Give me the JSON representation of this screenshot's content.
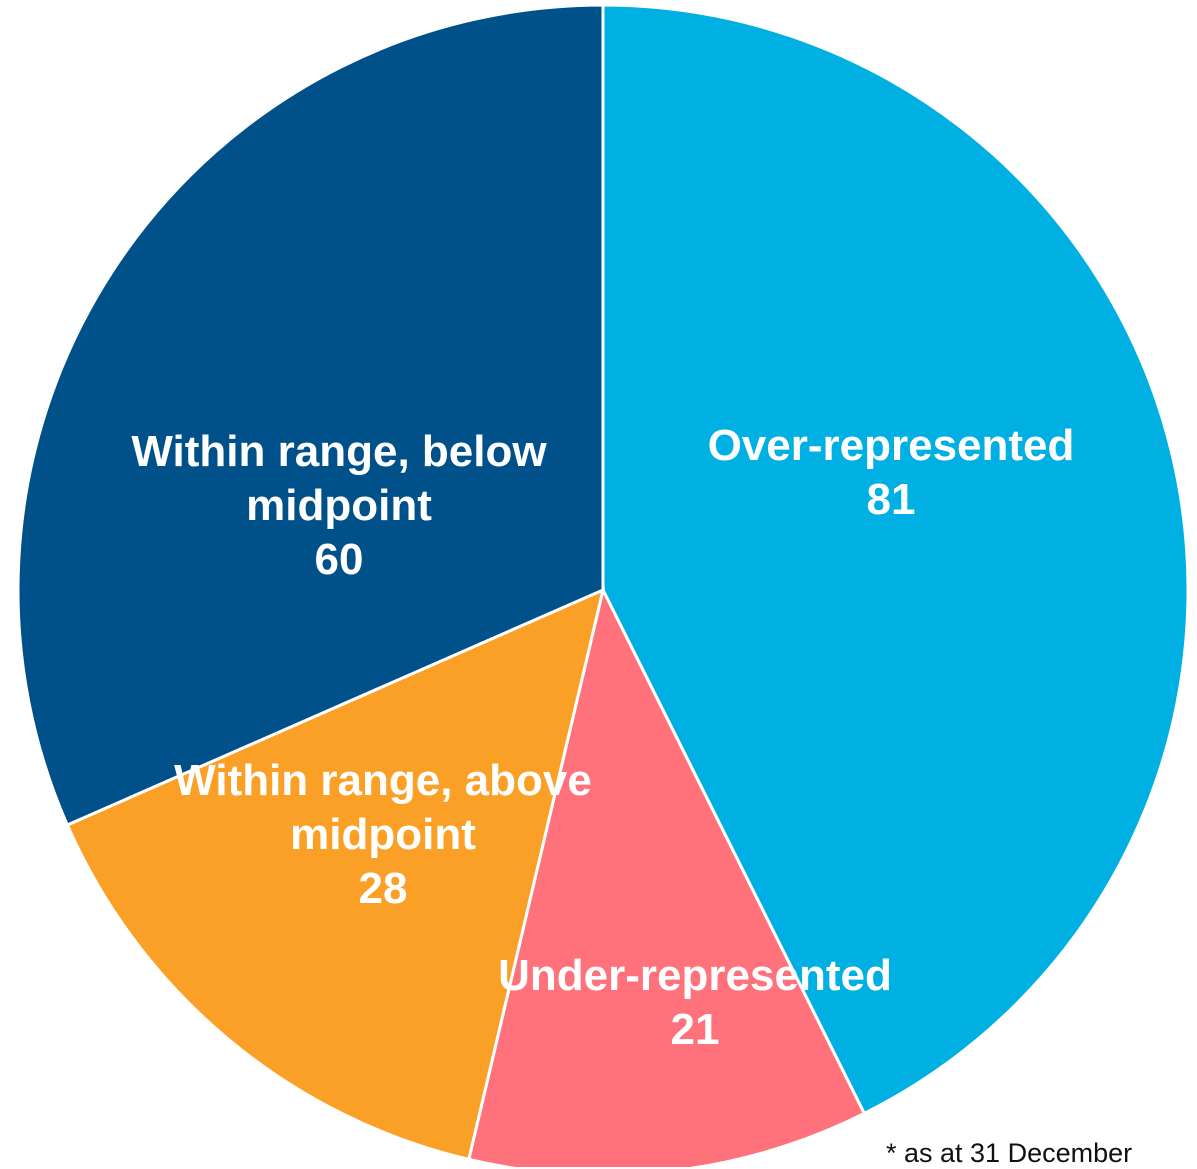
{
  "chart_data": {
    "type": "pie",
    "slices": [
      {
        "label": "Over-represented",
        "label_lines": [
          "Over-represented"
        ],
        "value": 81,
        "color": "#00b0e2"
      },
      {
        "label": "Under-represented",
        "label_lines": [
          "Under-represented"
        ],
        "value": 21,
        "color": "#ff717b"
      },
      {
        "label": "Within range, above midpoint",
        "label_lines": [
          "Within range, above",
          "midpoint"
        ],
        "value": 28,
        "color": "#fba026"
      },
      {
        "label": "Within range, below midpoint",
        "label_lines": [
          "Within range, below",
          "midpoint"
        ],
        "value": 60,
        "color": "#005189"
      }
    ],
    "legend": "none",
    "start_angle": "12 o'clock",
    "direction": "clockwise"
  },
  "footnote": "* as at 31 December"
}
